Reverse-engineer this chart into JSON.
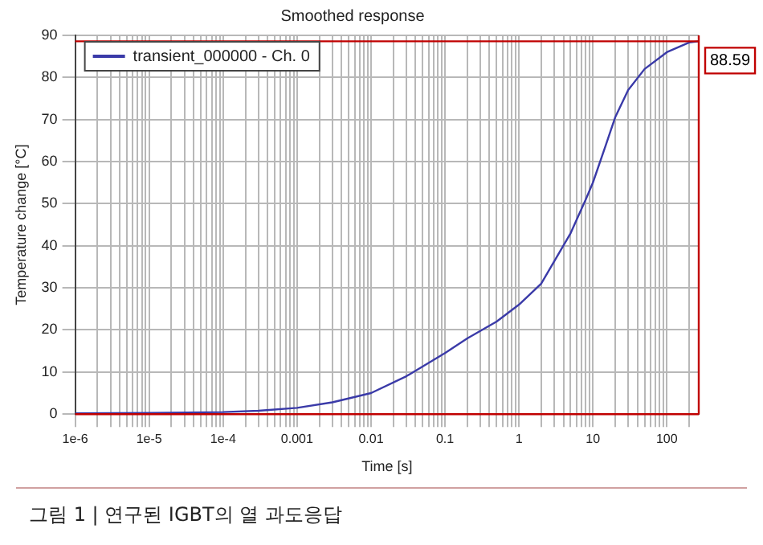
{
  "chart_data": {
    "type": "line",
    "title": "Smoothed response",
    "xlabel": "Time [s]",
    "ylabel": "Temperature change [°C]",
    "annotations": [
      "그림 1 | 연구된 IGBT의 열 과도응답"
    ],
    "series": [
      {
        "name": "transient_000000 - Ch. 0",
        "color": "#3a3aa8",
        "x": [
          1e-06,
          1e-05,
          0.0001,
          0.0003,
          0.001,
          0.003,
          0.01,
          0.03,
          0.1,
          0.2,
          0.5,
          1,
          2,
          5,
          8,
          10,
          15,
          20,
          30,
          50,
          100,
          200,
          270
        ],
        "values": [
          0.2,
          0.3,
          0.5,
          0.8,
          1.5,
          2.8,
          5,
          9,
          14.5,
          18,
          22,
          26,
          31,
          43,
          51,
          55,
          64,
          70.5,
          77,
          82,
          86,
          88.3,
          88.6
        ]
      }
    ],
    "xlim": [
      1e-06,
      270
    ],
    "ylim": [
      0,
      90
    ],
    "log": "x",
    "xticks": [
      {
        "value": 1e-06,
        "label": "1e-6"
      },
      {
        "value": 2e-06,
        "label": null
      },
      {
        "value": 3e-06,
        "label": null
      },
      {
        "value": 4e-06,
        "label": null
      },
      {
        "value": 5e-06,
        "label": null
      },
      {
        "value": 6e-06,
        "label": null
      },
      {
        "value": 7e-06,
        "label": null
      },
      {
        "value": 8e-06,
        "label": null
      },
      {
        "value": 9e-06,
        "label": null
      },
      {
        "value": 1e-05,
        "label": "1e-5"
      },
      {
        "value": 2e-05,
        "label": null
      },
      {
        "value": 3e-05,
        "label": null
      },
      {
        "value": 4e-05,
        "label": null
      },
      {
        "value": 5e-05,
        "label": null
      },
      {
        "value": 6e-05,
        "label": null
      },
      {
        "value": 7e-05,
        "label": null
      },
      {
        "value": 8e-05,
        "label": null
      },
      {
        "value": 9e-05,
        "label": null
      },
      {
        "value": 0.0001,
        "label": "1e-4"
      },
      {
        "value": 0.0002,
        "label": null
      },
      {
        "value": 0.0003,
        "label": null
      },
      {
        "value": 0.0004,
        "label": null
      },
      {
        "value": 0.0005,
        "label": null
      },
      {
        "value": 0.0006,
        "label": null
      },
      {
        "value": 0.0007,
        "label": null
      },
      {
        "value": 0.0008,
        "label": null
      },
      {
        "value": 0.0009,
        "label": null
      },
      {
        "value": 0.001,
        "label": "0.001"
      },
      {
        "value": 0.002,
        "label": null
      },
      {
        "value": 0.003,
        "label": null
      },
      {
        "value": 0.004,
        "label": null
      },
      {
        "value": 0.005,
        "label": null
      },
      {
        "value": 0.006,
        "label": null
      },
      {
        "value": 0.007,
        "label": null
      },
      {
        "value": 0.008,
        "label": null
      },
      {
        "value": 0.009,
        "label": null
      },
      {
        "value": 0.01,
        "label": "0.01"
      },
      {
        "value": 0.02,
        "label": null
      },
      {
        "value": 0.03,
        "label": null
      },
      {
        "value": 0.04,
        "label": null
      },
      {
        "value": 0.05,
        "label": null
      },
      {
        "value": 0.06,
        "label": null
      },
      {
        "value": 0.07,
        "label": null
      },
      {
        "value": 0.08,
        "label": null
      },
      {
        "value": 0.09,
        "label": null
      },
      {
        "value": 0.1,
        "label": "0.1"
      },
      {
        "value": 0.2,
        "label": null
      },
      {
        "value": 0.3,
        "label": null
      },
      {
        "value": 0.4,
        "label": null
      },
      {
        "value": 0.5,
        "label": null
      },
      {
        "value": 0.6,
        "label": null
      },
      {
        "value": 0.7,
        "label": null
      },
      {
        "value": 0.8,
        "label": null
      },
      {
        "value": 0.9,
        "label": null
      },
      {
        "value": 1,
        "label": "1"
      },
      {
        "value": 2,
        "label": null
      },
      {
        "value": 3,
        "label": null
      },
      {
        "value": 4,
        "label": null
      },
      {
        "value": 5,
        "label": null
      },
      {
        "value": 6,
        "label": null
      },
      {
        "value": 7,
        "label": null
      },
      {
        "value": 8,
        "label": null
      },
      {
        "value": 9,
        "label": null
      },
      {
        "value": 10,
        "label": "10"
      },
      {
        "value": 20,
        "label": null
      },
      {
        "value": 30,
        "label": null
      },
      {
        "value": 40,
        "label": null
      },
      {
        "value": 50,
        "label": null
      },
      {
        "value": 60,
        "label": null
      },
      {
        "value": 70,
        "label": null
      },
      {
        "value": 80,
        "label": null
      },
      {
        "value": 90,
        "label": null
      },
      {
        "value": 100,
        "label": "100"
      },
      {
        "value": 200,
        "label": null
      }
    ],
    "yticks": [
      0,
      10,
      20,
      30,
      40,
      50,
      60,
      70,
      80,
      90
    ],
    "ref_lines": [
      {
        "axis": "y",
        "value": 88.59,
        "label": "88.59",
        "color": "#c00000"
      },
      {
        "axis": "x",
        "value": 270,
        "label": null,
        "color": "#c00000"
      },
      {
        "axis": "y",
        "value": 0,
        "label": null,
        "color": "#c00000"
      }
    ],
    "grid": true,
    "legend": "top left",
    "marker": "none",
    "line_style": "solid"
  }
}
